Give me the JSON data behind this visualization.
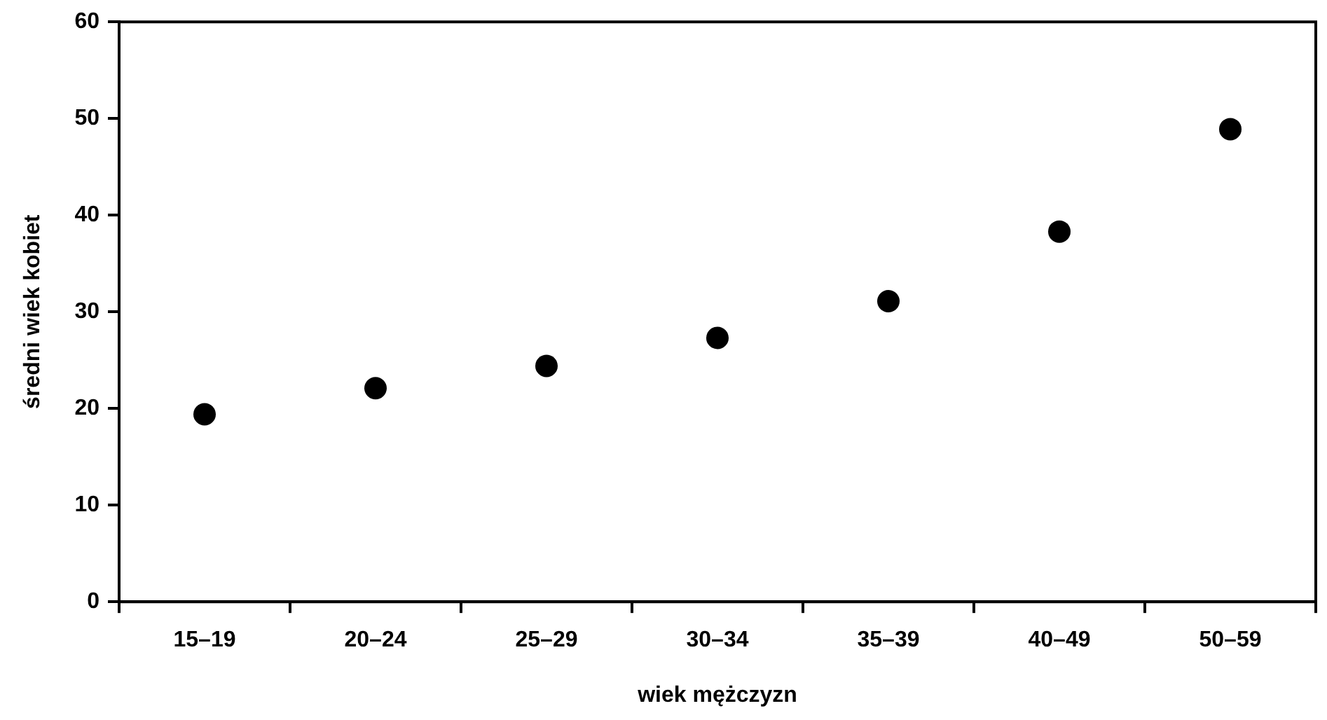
{
  "chart_data": {
    "type": "scatter",
    "xlabel": "wiek mężczyzn",
    "ylabel": "średni wiek kobiet",
    "categories": [
      "15–19",
      "20–24",
      "25–29",
      "30–34",
      "35–39",
      "40–49",
      "50–59"
    ],
    "values": [
      19.4,
      22.1,
      24.4,
      27.3,
      31.1,
      38.3,
      48.9
    ],
    "color": "#000000",
    "ylim": [
      0,
      60
    ],
    "yticks": [
      0,
      10,
      20,
      30,
      40,
      50,
      60
    ],
    "marker": "circle"
  }
}
